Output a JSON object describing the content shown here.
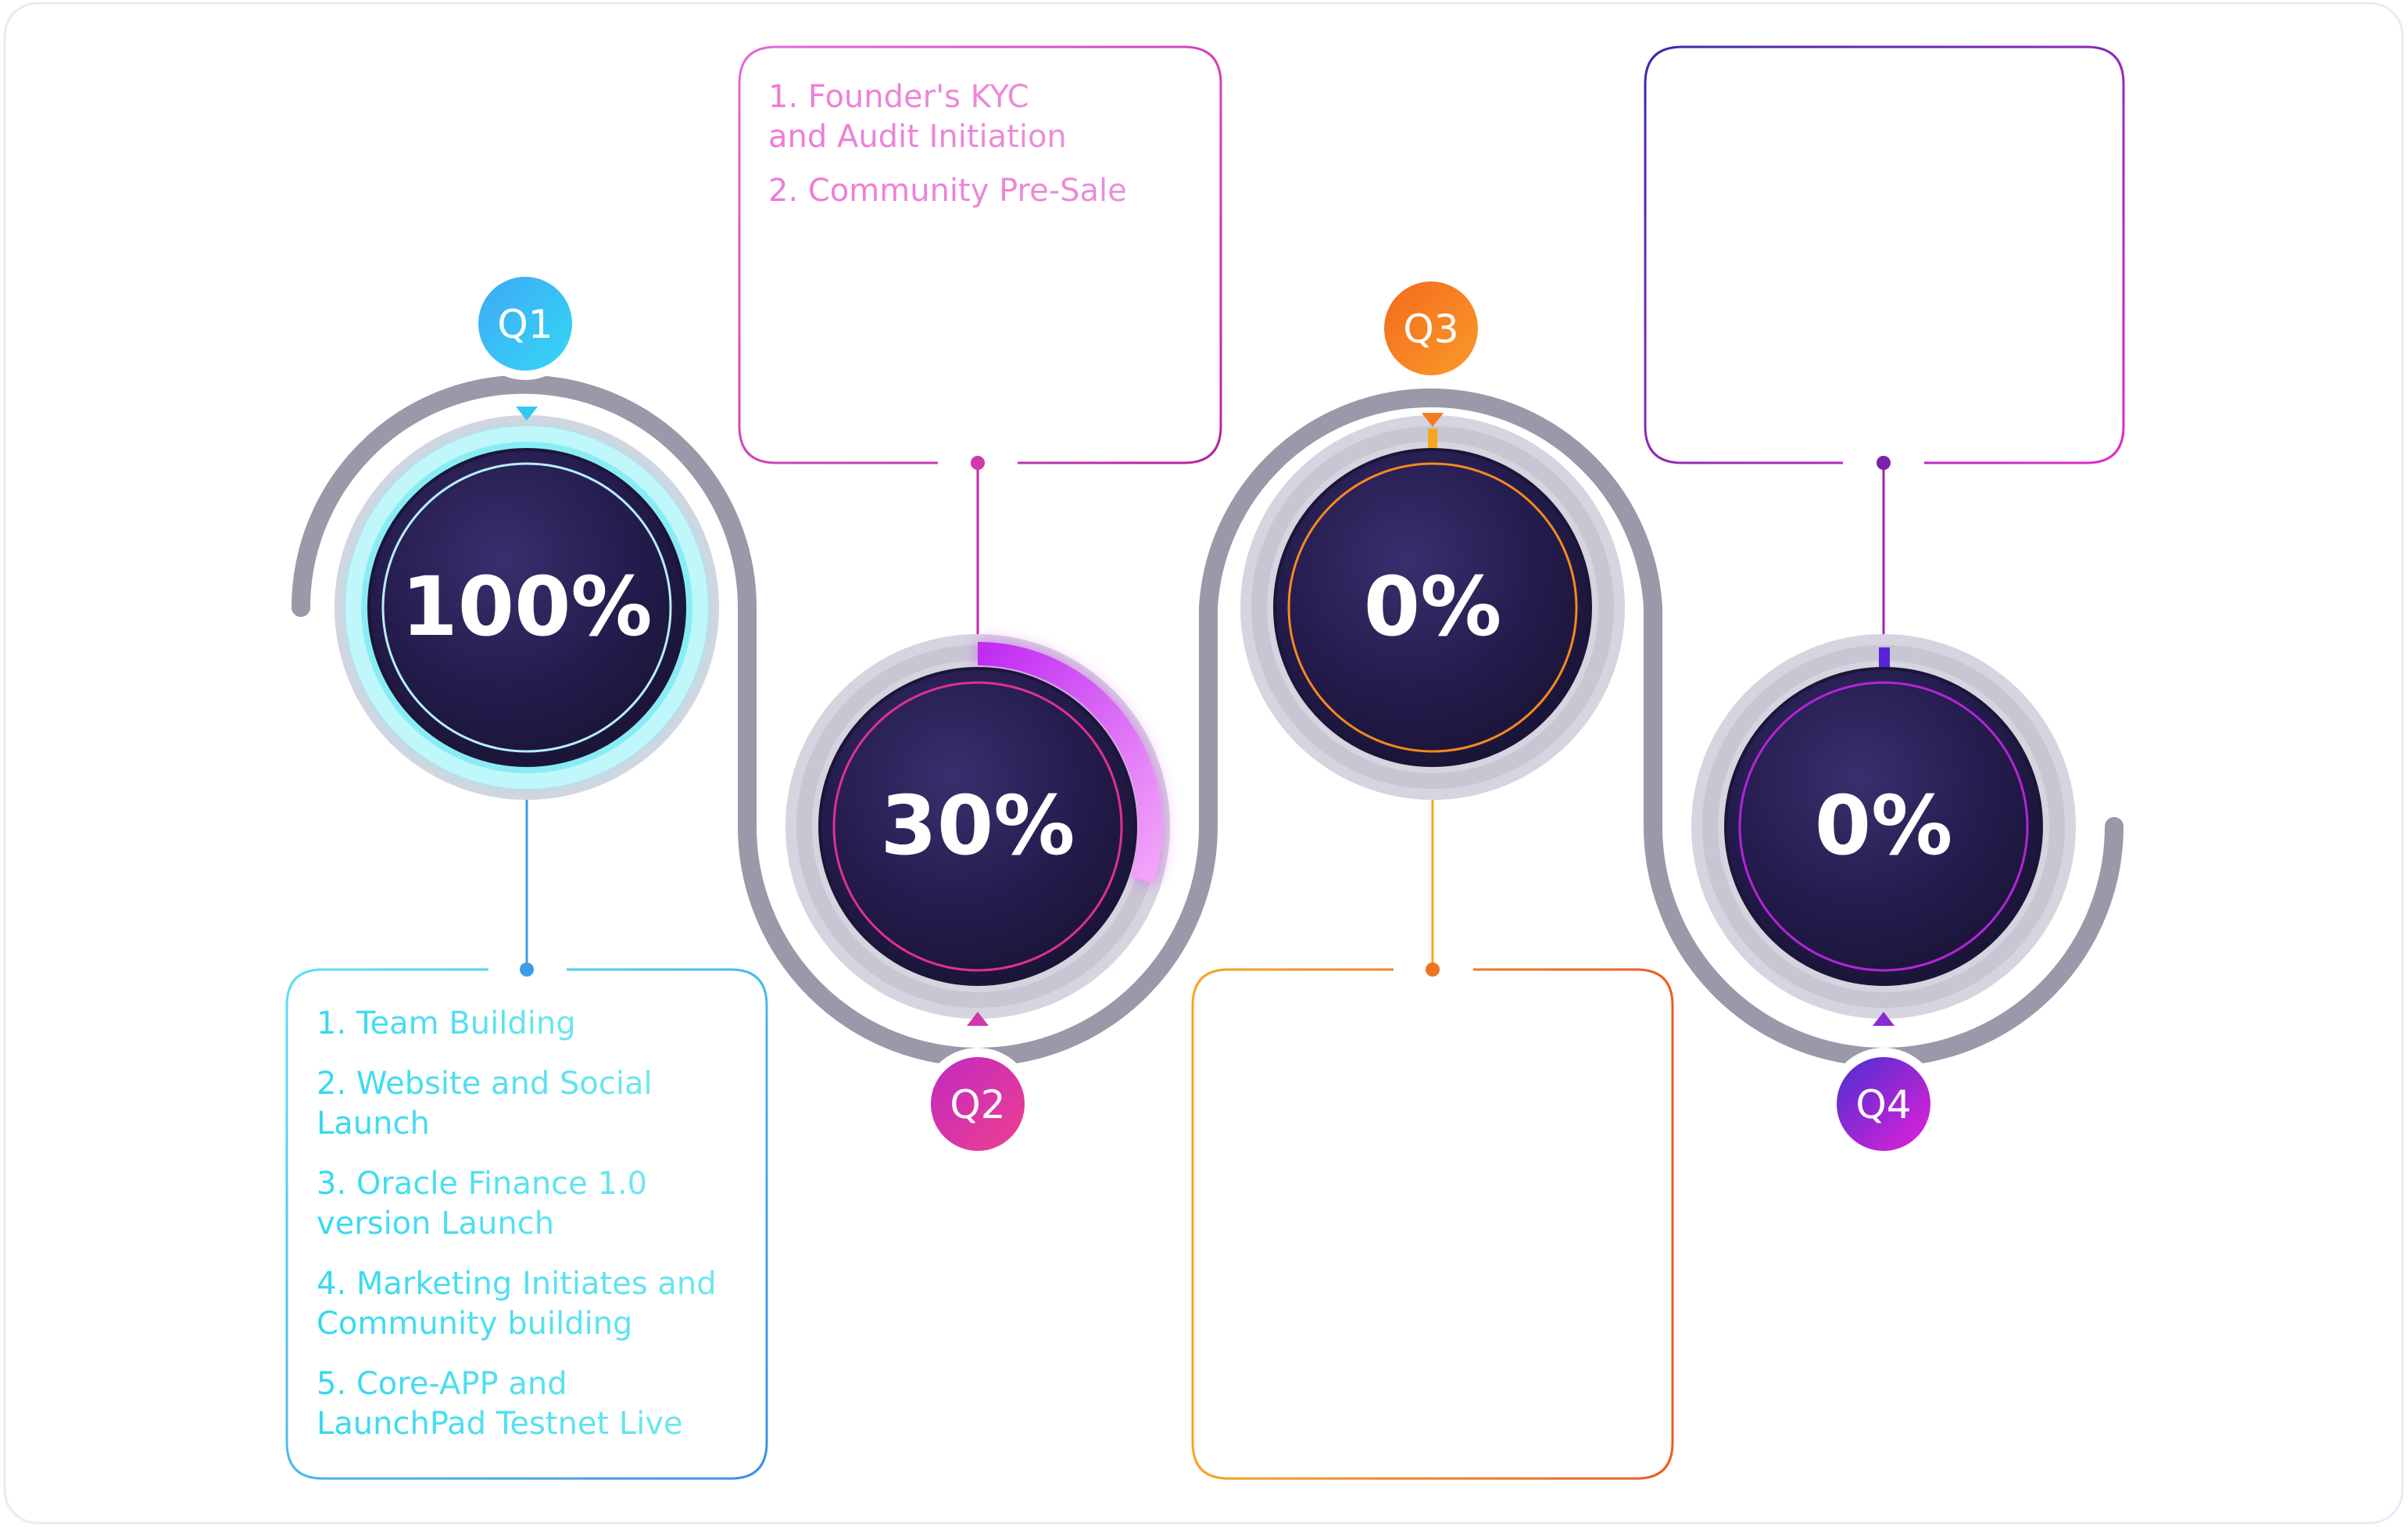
{
  "quarters": [
    {
      "id": "q1",
      "label": "Q1",
      "progress_percent": 100,
      "progress_text": "100%",
      "accent": "#2ad4f0",
      "items": [
        [
          "1. Team Building"
        ],
        [
          "2. Website and Social",
          "Launch"
        ],
        [
          "3. Oracle Finance 1.0",
          "version Launch"
        ],
        [
          "4. Marketing Initiates and",
          "Community building"
        ],
        [
          "5. Core-APP and",
          "LaunchPad Testnet Live"
        ]
      ]
    },
    {
      "id": "q2",
      "label": "Q2",
      "progress_percent": 30,
      "progress_text": "30%",
      "accent": "#d43fd6",
      "items": [
        [
          "1. Founder's KYC",
          "and Audit Initiation"
        ],
        [
          "2. Community Pre-Sale"
        ]
      ]
    },
    {
      "id": "q3",
      "label": "Q3",
      "progress_percent": 0,
      "progress_text": "0%",
      "accent": "#f5891f",
      "items": []
    },
    {
      "id": "q4",
      "label": "Q4",
      "progress_percent": 0,
      "progress_text": "0%",
      "accent": "#7d2bd8",
      "items": []
    }
  ]
}
